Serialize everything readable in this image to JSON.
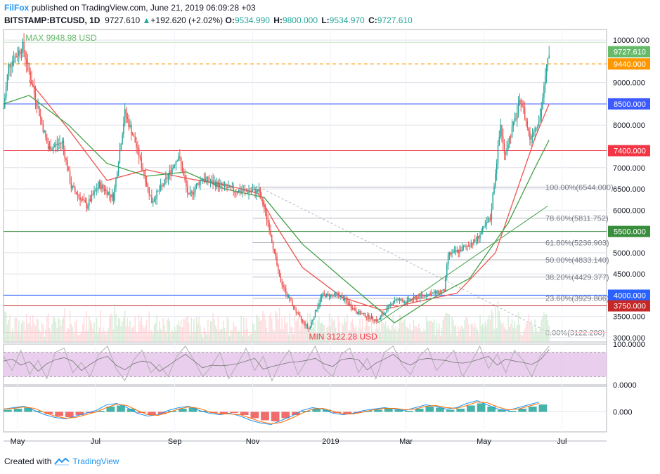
{
  "header": {
    "brand": "FilFox",
    "published": "published on TradingView.com, June 21, 2019 06:09:28 +03",
    "symbol": "BITSTAMP:BTCUSD, 1D",
    "last": "9727.610",
    "change": "+192.620 (+2.02%)",
    "o_label": "O:",
    "o_value": "9534.990",
    "h_label": "H:",
    "h_value": "9800.000",
    "l_label": "L:",
    "l_value": "9534.970",
    "c_label": "C:",
    "c_value": "9727.610"
  },
  "footer": {
    "created": "Created with",
    "brand": "TradingView"
  },
  "colors": {
    "up": "#26a69a",
    "down": "#ef5350",
    "ma_fast": "#ef5350",
    "ma_slow": "#43a047",
    "grid": "#e0e3eb",
    "stoch_band": "#e1bee7",
    "orange": "#ff9800"
  },
  "chart_data": {
    "type": "candlestick",
    "symbol": "BTCUSD",
    "timeframe": "1D",
    "ylim": [
      2900,
      10250
    ],
    "x_range": [
      "2018-04-20",
      "2019-08-05"
    ],
    "x_ticks": [
      {
        "label": "May",
        "date": "2018-05-01"
      },
      {
        "label": "Jul",
        "date": "2018-07-01"
      },
      {
        "label": "Sep",
        "date": "2018-09-01"
      },
      {
        "label": "Nov",
        "date": "2018-11-01"
      },
      {
        "label": "2019",
        "date": "2019-01-01"
      },
      {
        "label": "Mar",
        "date": "2019-03-01"
      },
      {
        "label": "May",
        "date": "2019-05-01"
      },
      {
        "label": "Jul",
        "date": "2019-07-01"
      }
    ],
    "y_ticks": [
      "10000.000",
      "9000.000",
      "8000.000",
      "7000.000",
      "6500.000",
      "6000.000",
      "5000.000",
      "4500.000",
      "3500.000",
      "3000.000"
    ],
    "price_path": [
      [
        "2018-04-20",
        8400
      ],
      [
        "2018-04-24",
        9400
      ],
      [
        "2018-05-05",
        9850
      ],
      [
        "2018-05-15",
        8650
      ],
      [
        "2018-05-25",
        7450
      ],
      [
        "2018-06-05",
        7600
      ],
      [
        "2018-06-12",
        6550
      ],
      [
        "2018-06-24",
        6100
      ],
      [
        "2018-07-04",
        6600
      ],
      [
        "2018-07-15",
        6300
      ],
      [
        "2018-07-24",
        8300
      ],
      [
        "2018-08-01",
        7600
      ],
      [
        "2018-08-14",
        6200
      ],
      [
        "2018-08-25",
        6700
      ],
      [
        "2018-09-04",
        7300
      ],
      [
        "2018-09-12",
        6300
      ],
      [
        "2018-09-22",
        6750
      ],
      [
        "2018-10-05",
        6600
      ],
      [
        "2018-10-18",
        6450
      ],
      [
        "2018-11-06",
        6450
      ],
      [
        "2018-11-14",
        5600
      ],
      [
        "2018-11-22",
        4400
      ],
      [
        "2018-11-28",
        4000
      ],
      [
        "2018-12-07",
        3500
      ],
      [
        "2018-12-15",
        3200
      ],
      [
        "2018-12-25",
        4000
      ],
      [
        "2019-01-08",
        4000
      ],
      [
        "2019-01-22",
        3600
      ],
      [
        "2019-02-07",
        3400
      ],
      [
        "2019-02-20",
        3900
      ],
      [
        "2019-03-01",
        3850
      ],
      [
        "2019-03-15",
        4000
      ],
      [
        "2019-03-31",
        4100
      ],
      [
        "2019-04-03",
        4950
      ],
      [
        "2019-04-12",
        5050
      ],
      [
        "2019-04-25",
        5300
      ],
      [
        "2019-05-06",
        5800
      ],
      [
        "2019-05-14",
        8000
      ],
      [
        "2019-05-17",
        7300
      ],
      [
        "2019-05-24",
        8000
      ],
      [
        "2019-05-30",
        8600
      ],
      [
        "2019-06-06",
        7700
      ],
      [
        "2019-06-14",
        8200
      ],
      [
        "2019-06-19",
        9300
      ],
      [
        "2019-06-21",
        9727.61
      ]
    ],
    "moving_averages": [
      {
        "name": "MA fast",
        "color": "#ef5350",
        "path": [
          [
            "2018-05-10",
            9050
          ],
          [
            "2018-06-10",
            7900
          ],
          [
            "2018-07-10",
            6700
          ],
          [
            "2018-08-10",
            6950
          ],
          [
            "2018-09-10",
            6750
          ],
          [
            "2018-10-10",
            6600
          ],
          [
            "2018-11-05",
            6400
          ],
          [
            "2018-11-20",
            5600
          ],
          [
            "2018-12-10",
            4650
          ],
          [
            "2019-01-10",
            3950
          ],
          [
            "2019-02-10",
            3650
          ],
          [
            "2019-03-10",
            3850
          ],
          [
            "2019-04-10",
            4050
          ],
          [
            "2019-05-10",
            5000
          ],
          [
            "2019-06-10",
            7700
          ],
          [
            "2019-06-21",
            8500
          ]
        ]
      },
      {
        "name": "MA slow",
        "color": "#43a047",
        "path": [
          [
            "2018-04-20",
            8500
          ],
          [
            "2018-05-10",
            8700
          ],
          [
            "2018-06-10",
            8000
          ],
          [
            "2018-07-10",
            7100
          ],
          [
            "2018-08-10",
            6800
          ],
          [
            "2018-09-10",
            6900
          ],
          [
            "2018-10-10",
            6500
          ],
          [
            "2018-11-10",
            6300
          ],
          [
            "2018-12-10",
            5200
          ],
          [
            "2019-01-10",
            4400
          ],
          [
            "2019-02-20",
            3350
          ],
          [
            "2019-03-20",
            3900
          ],
          [
            "2019-04-20",
            4400
          ],
          [
            "2019-05-20",
            5700
          ],
          [
            "2019-06-10",
            7000
          ],
          [
            "2019-06-21",
            7650
          ]
        ]
      }
    ],
    "horizontal_levels": [
      {
        "label": "8500.000",
        "value": 8500,
        "color": "#3d5afe"
      },
      {
        "label": "7400.000",
        "value": 7400,
        "color": "#f23645"
      },
      {
        "label": "5500.000",
        "value": 5500,
        "color": "#388e3c"
      },
      {
        "label": "4000.000",
        "value": 4000,
        "color": "#2962ff"
      },
      {
        "label": "3750.000",
        "value": 3750,
        "color": "#c62828"
      }
    ],
    "price_tags": [
      {
        "label": "9727.610",
        "value": 9727.61,
        "color": "#66bb6a"
      },
      {
        "label": "9440.000",
        "value": 9440,
        "color": "#ff9800"
      }
    ],
    "fibonacci": [
      {
        "label": "100.00%(6544.000)",
        "value": 6544
      },
      {
        "label": "78.60%(5811.752)",
        "value": 5811.752
      },
      {
        "label": "61.80%(5236.903)",
        "value": 5236.903
      },
      {
        "label": "50.00%(4833.140)",
        "value": 4833.14
      },
      {
        "label": "38.20%(4429.377)",
        "value": 4429.377
      },
      {
        "label": "23.60%(3929.806)",
        "value": 3929.806
      },
      {
        "label": "0.00%(3122.280)",
        "value": 3122.28
      }
    ],
    "annotations": {
      "max": {
        "label": "MAX 9948.98 USD",
        "value": 9948.98,
        "date": "2018-05-05"
      },
      "min": {
        "label": "MIN 3122.28 USD",
        "value": 3122.28,
        "date": "2018-12-15"
      }
    },
    "stochastic": {
      "labels": [
        "100.0000",
        "0.0000"
      ],
      "band": [
        20,
        80
      ],
      "values": [
        70,
        35,
        85,
        25,
        60,
        15,
        80,
        90,
        30,
        55,
        20,
        75,
        95,
        40,
        10,
        60,
        85,
        30,
        50,
        20,
        70,
        95,
        60,
        20,
        45,
        80,
        15,
        50,
        90,
        35,
        70,
        10,
        55,
        85,
        25,
        60,
        95,
        40,
        20,
        75,
        90,
        30,
        65,
        15,
        80,
        95,
        50,
        25,
        70,
        90,
        35,
        60,
        85,
        20,
        55,
        95,
        40,
        75,
        30,
        85,
        60,
        20,
        70,
        95
      ]
    },
    "macd": {
      "labels": [
        "0.000"
      ],
      "histogram": [
        1,
        1.5,
        2,
        0.5,
        -1,
        -2,
        -2.5,
        -1.5,
        -0.5,
        0.5,
        2.5,
        3,
        1.5,
        -0.5,
        -1.5,
        -1,
        0.5,
        1.5,
        2,
        0.5,
        -0.5,
        -1,
        -0.5,
        -1.5,
        -3,
        -4,
        -4.5,
        -3,
        -1.5,
        0.5,
        1.5,
        1,
        -0.5,
        -1,
        -0.5,
        0.5,
        1,
        1.5,
        1,
        0.5,
        1.5,
        2.5,
        2,
        1,
        1.5,
        3,
        4,
        2.5,
        1,
        0.5,
        1.5,
        2.5,
        3.5
      ]
    }
  }
}
